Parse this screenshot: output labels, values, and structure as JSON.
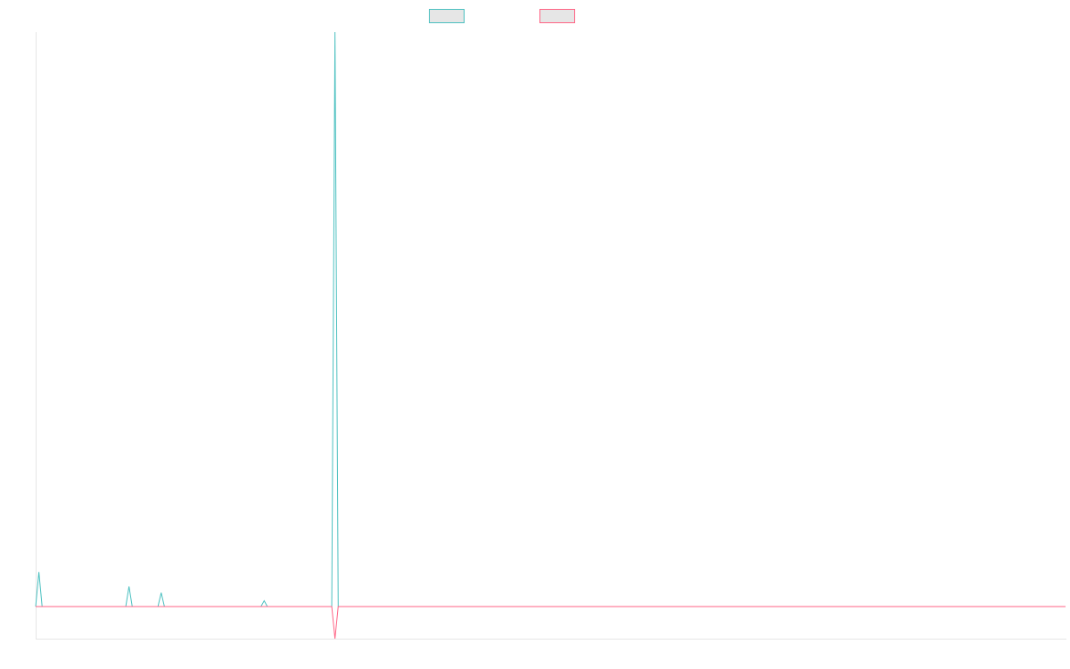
{
  "chart_data": {
    "type": "line",
    "title": "",
    "xlabel": "",
    "ylabel": "",
    "grid": false,
    "legend_position": "top-center",
    "x": [
      0,
      1,
      2,
      3,
      4,
      5,
      6,
      7,
      8,
      9,
      10,
      11,
      12,
      13,
      14,
      15,
      16,
      17,
      18,
      19,
      20,
      21,
      22,
      23,
      24,
      25,
      26,
      27,
      28,
      29,
      30,
      31,
      32,
      33,
      34,
      35,
      36,
      37,
      38,
      39,
      40,
      41,
      42,
      43,
      44,
      45,
      46,
      47,
      48,
      49,
      50,
      51,
      52,
      53,
      54,
      55,
      56,
      57,
      58,
      59,
      60,
      61,
      62,
      63,
      64,
      65,
      66,
      67,
      68,
      69,
      70,
      71,
      72,
      73,
      74,
      75,
      76,
      77,
      78,
      79,
      80,
      81,
      82,
      83,
      84,
      85,
      86,
      87,
      88,
      89,
      90,
      91,
      92,
      93,
      94,
      95,
      96,
      97,
      98,
      99,
      100,
      101,
      102,
      103,
      104,
      105,
      106,
      107,
      108,
      109,
      110,
      111,
      112,
      113,
      114,
      115,
      116,
      117,
      118,
      119,
      120,
      121,
      122,
      123,
      124,
      125,
      126,
      127,
      128,
      129,
      130,
      131,
      132,
      133,
      134,
      135,
      136,
      137,
      138,
      139,
      140,
      141,
      142,
      143,
      144,
      145,
      146,
      147,
      148,
      149,
      150,
      151,
      152,
      153,
      154,
      155,
      156,
      157,
      158,
      159,
      160,
      161,
      162,
      163,
      164,
      165,
      166,
      167,
      168,
      169,
      170,
      171,
      172,
      173,
      174,
      175,
      176,
      177,
      178,
      179,
      180,
      181,
      182,
      183,
      184,
      185,
      186,
      187,
      188,
      189,
      190,
      191,
      192,
      193,
      194,
      195,
      196,
      197,
      198,
      199,
      200,
      201,
      202,
      203,
      204,
      205,
      206,
      207,
      208,
      209,
      210,
      211,
      212,
      213,
      214,
      215,
      216,
      217,
      218,
      219,
      220,
      221,
      222,
      223,
      224,
      225,
      226,
      227,
      228,
      229,
      230,
      231,
      232,
      233,
      234,
      235,
      236,
      237,
      238,
      239,
      240,
      241,
      242,
      243,
      244,
      245,
      246,
      247,
      248,
      249,
      250,
      251,
      252,
      253,
      254,
      255,
      256,
      257,
      258,
      259,
      260,
      261,
      262,
      263,
      264,
      265,
      266,
      267,
      268,
      269,
      270,
      271,
      272,
      273,
      274,
      275,
      276,
      277,
      278,
      279,
      280,
      281,
      282,
      283,
      284,
      285,
      286,
      287,
      288,
      289,
      290,
      291,
      292,
      293,
      294,
      295,
      296,
      297,
      298,
      299,
      300,
      301,
      302,
      303,
      304,
      305,
      306,
      307,
      308,
      309,
      310,
      311,
      312,
      313,
      314,
      315,
      316,
      317,
      318,
      319,
      320
    ],
    "ylim": [
      -0.056,
      1.0
    ],
    "series": [
      {
        "color": "#4bc0c0",
        "fill": "#e6e6e6",
        "points": [
          [
            0,
            0
          ],
          [
            1,
            0.06
          ],
          [
            2,
            0
          ],
          [
            28,
            0
          ],
          [
            29,
            0.035
          ],
          [
            30,
            0
          ],
          [
            38,
            0
          ],
          [
            39,
            0.024
          ],
          [
            40,
            0
          ],
          [
            70,
            0
          ],
          [
            71,
            0.01
          ],
          [
            72,
            0
          ],
          [
            92,
            0
          ],
          [
            93,
            1.0
          ],
          [
            94,
            0
          ],
          [
            320,
            0
          ]
        ]
      },
      {
        "color": "#ff6384",
        "fill": "#e6e6e6",
        "points": [
          [
            0,
            0
          ],
          [
            92,
            0
          ],
          [
            93,
            -0.056
          ],
          [
            94,
            0
          ],
          [
            320,
            0
          ]
        ]
      }
    ]
  }
}
